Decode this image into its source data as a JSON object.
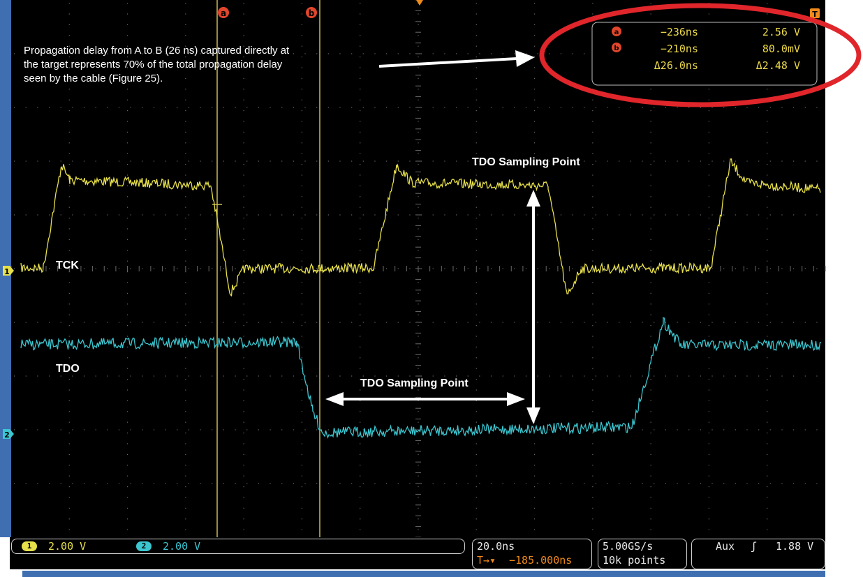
{
  "annotation": {
    "text": "Propagation delay from A to B (26 ns) captured directly at\nthe target represents 70% of the total propagation delay\nseen by the cable (Figure 25).",
    "sampling_point_top": "TDO Sampling Point",
    "sampling_point_bottom": "TDO Sampling Point"
  },
  "channels": {
    "ch1": {
      "label": "TCK",
      "marker": "1",
      "scale": "2.00 V",
      "color": "#e7e04a"
    },
    "ch2": {
      "label": "TDO",
      "marker": "2",
      "scale": "2.00 V",
      "color": "#3bc6d0"
    }
  },
  "cursors": {
    "a_marker": "a",
    "b_marker": "b",
    "a_time": "−236ns",
    "a_volt": "2.56 V",
    "b_time": "−210ns",
    "b_volt": "80.0mV",
    "delta_time": "Δ26.0ns",
    "delta_volt": "Δ2.48 V"
  },
  "timebase": {
    "scale": "20.0ns",
    "position": "−185.000ns",
    "trigger_icon": "T→▾"
  },
  "acquisition": {
    "rate": "5.00GS/s",
    "points": "10k points"
  },
  "trigger": {
    "source": "Aux",
    "slope_icon": "rising-edge-icon",
    "level": "1.88 V",
    "marker": "T"
  },
  "colors": {
    "background": "#000000",
    "grid": "#6a6a6a",
    "cursor": "#d7c85a",
    "highlight_ring": "#e0262b",
    "annotation_text": "#ffffff"
  }
}
